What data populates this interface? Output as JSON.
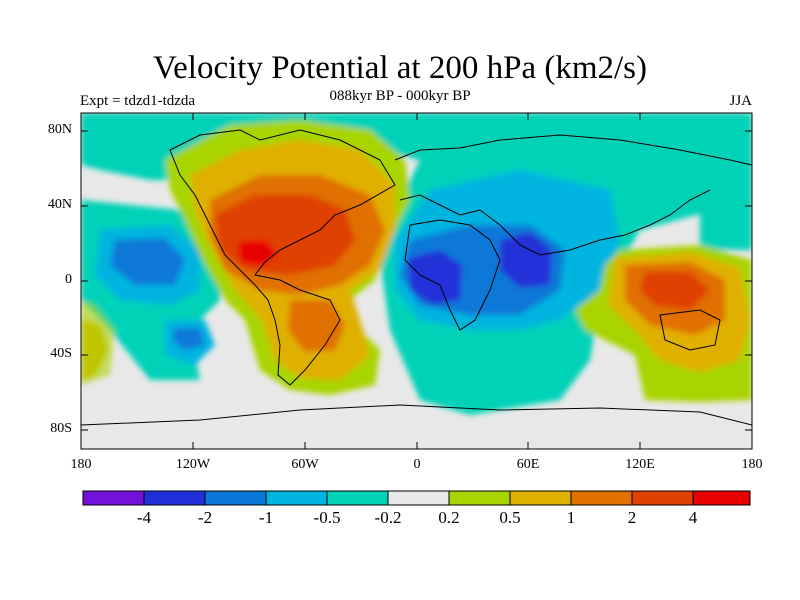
{
  "title": "Velocity Potential at 200 hPa (km2/s)",
  "subtitle": "088kyr BP - 000kyr BP",
  "left_label": "Expt = tdzd1-tdzda",
  "right_label": "JJA",
  "map": {
    "lat_labels": [
      "80N",
      "40N",
      "0",
      "40S",
      "80S"
    ],
    "lon_labels": [
      "180",
      "120W",
      "60W",
      "0",
      "60E",
      "120E",
      "180"
    ],
    "background_color": "#e8e8e8",
    "anomaly_regions": [
      {
        "name": "Atlantic/Americas positive",
        "level": "2 to 4",
        "color": "#e07000"
      },
      {
        "name": "Central America core",
        "level": "> 4",
        "color": "#e02000"
      },
      {
        "name": "Africa/Indian Ocean negative",
        "level": "-4 to -2",
        "color": "#2030d8"
      },
      {
        "name": "Maritime Continent positive",
        "level": "2 to 4",
        "color": "#e07000"
      }
    ]
  },
  "colorbar": {
    "colors": [
      "#7010d8",
      "#2030d8",
      "#0a78d8",
      "#00b4e0",
      "#00d2b8",
      "#e8e8e8",
      "#a8d400",
      "#e0b000",
      "#e07000",
      "#e04000",
      "#e80000"
    ],
    "labels": [
      "-4",
      "-2",
      "-1",
      "-0.5",
      "-0.2",
      "0.2",
      "0.5",
      "1",
      "2",
      "4"
    ]
  }
}
